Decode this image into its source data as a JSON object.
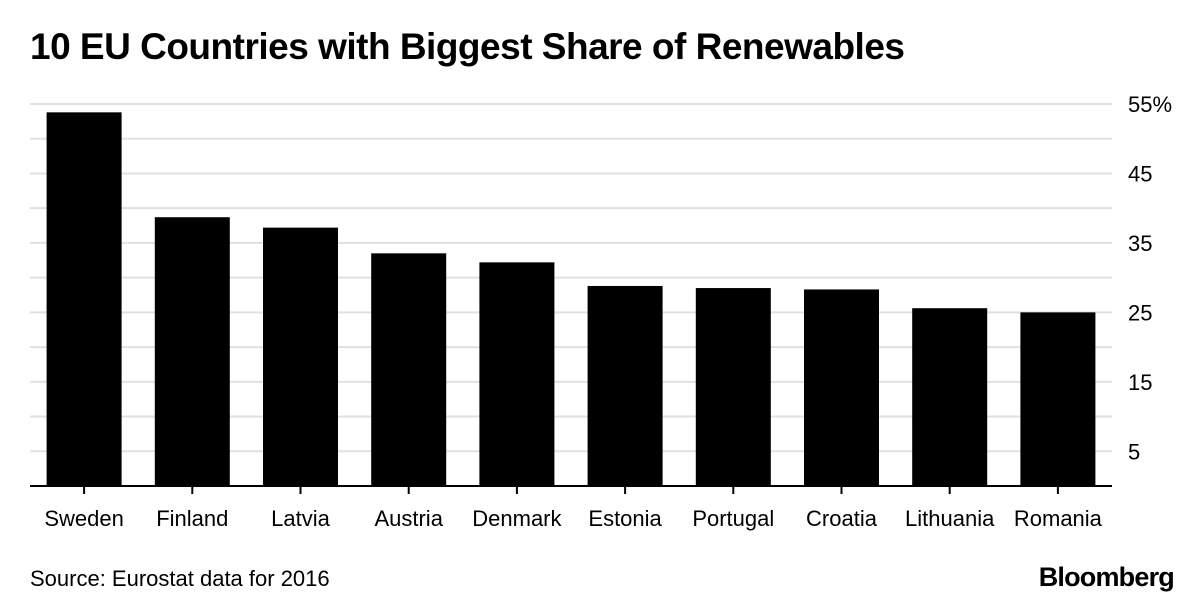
{
  "title": "10 EU Countries with Biggest Share of Renewables",
  "source": "Source: Eurostat data for 2016",
  "brand": "Bloomberg",
  "chart_data": {
    "type": "bar",
    "title": "10 EU Countries with Biggest Share of Renewables",
    "xlabel": "",
    "ylabel": "",
    "categories": [
      "Sweden",
      "Finland",
      "Latvia",
      "Austria",
      "Denmark",
      "Estonia",
      "Portugal",
      "Croatia",
      "Lithuania",
      "Romania"
    ],
    "values": [
      53.8,
      38.7,
      37.2,
      33.5,
      32.2,
      28.8,
      28.5,
      28.3,
      25.6,
      25.0
    ],
    "ylim": [
      0,
      55
    ],
    "y_ticks": [
      5,
      15,
      25,
      35,
      45,
      55
    ],
    "y_tick_labels": [
      "5",
      "15",
      "25",
      "35",
      "45",
      "55%"
    ],
    "y_axis_side": "right",
    "grid": true,
    "bar_color": "#000000",
    "grid_color": "#e0e0e0"
  }
}
